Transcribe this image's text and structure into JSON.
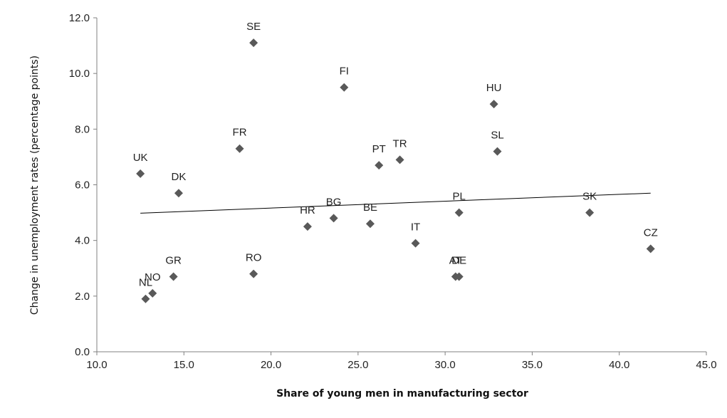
{
  "chart_data": {
    "type": "scatter",
    "title": "",
    "xlabel": "Share of young men in manufacturing sector",
    "ylabel": "Change in unemployment rates (percentage points)",
    "xlim": [
      10.0,
      45.0
    ],
    "ylim": [
      0.0,
      12.0
    ],
    "x_ticks": [
      "10.0",
      "15.0",
      "20.0",
      "25.0",
      "30.0",
      "35.0",
      "40.0",
      "45.0"
    ],
    "y_ticks": [
      "0.0",
      "2.0",
      "4.0",
      "6.0",
      "8.0",
      "10.0",
      "12.0"
    ],
    "grid": false,
    "legend": "none",
    "marker_color": "#595959",
    "trendline": {
      "x": [
        12.5,
        41.8
      ],
      "y": [
        4.98,
        5.7
      ],
      "color": "#000000"
    },
    "points": [
      {
        "label": "SE",
        "x": 19.0,
        "y": 11.1
      },
      {
        "label": "FI",
        "x": 24.2,
        "y": 9.5
      },
      {
        "label": "HU",
        "x": 32.8,
        "y": 8.9
      },
      {
        "label": "FR",
        "x": 18.2,
        "y": 7.3
      },
      {
        "label": "SL",
        "x": 33.0,
        "y": 7.2
      },
      {
        "label": "TR",
        "x": 27.4,
        "y": 6.9
      },
      {
        "label": "PT",
        "x": 26.2,
        "y": 6.7
      },
      {
        "label": "UK",
        "x": 12.5,
        "y": 6.4
      },
      {
        "label": "DK",
        "x": 14.7,
        "y": 5.7
      },
      {
        "label": "PL",
        "x": 30.8,
        "y": 5.0
      },
      {
        "label": "SK",
        "x": 38.3,
        "y": 5.0
      },
      {
        "label": "BG",
        "x": 23.6,
        "y": 4.8
      },
      {
        "label": "BE",
        "x": 25.7,
        "y": 4.6
      },
      {
        "label": "HR",
        "x": 22.1,
        "y": 4.5
      },
      {
        "label": "IT",
        "x": 28.3,
        "y": 3.9
      },
      {
        "label": "CZ",
        "x": 41.8,
        "y": 3.7
      },
      {
        "label": "RO",
        "x": 19.0,
        "y": 2.8
      },
      {
        "label": "GR",
        "x": 14.4,
        "y": 2.7
      },
      {
        "label": "AT",
        "x": 30.6,
        "y": 2.7
      },
      {
        "label": "DE",
        "x": 30.8,
        "y": 2.7
      },
      {
        "label": "NO",
        "x": 13.2,
        "y": 2.1
      },
      {
        "label": "NL",
        "x": 12.8,
        "y": 1.9
      }
    ]
  }
}
